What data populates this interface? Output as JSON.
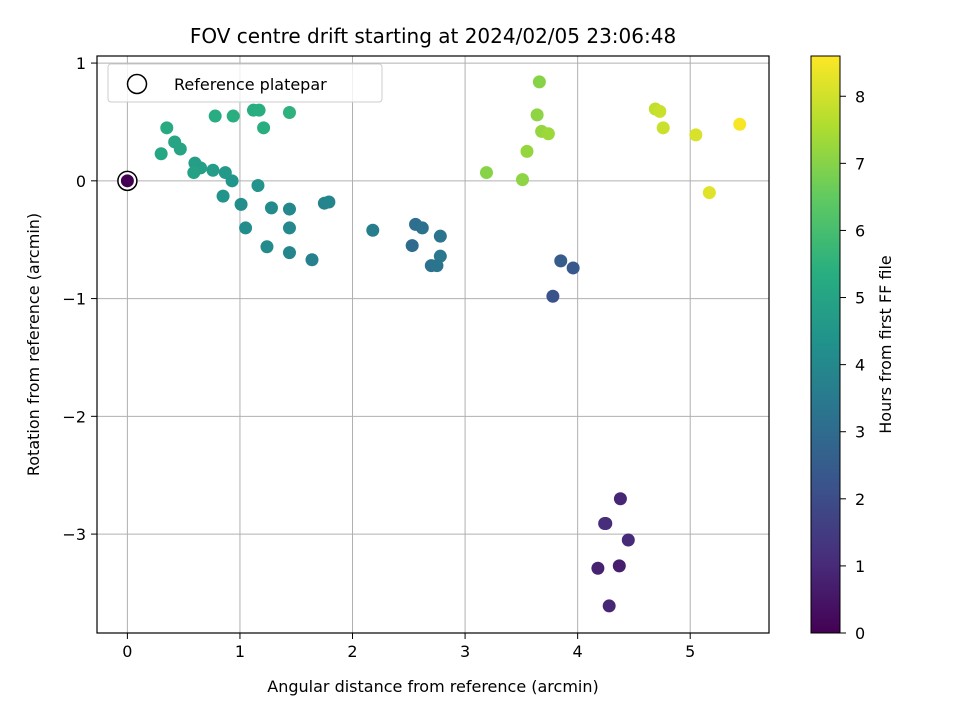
{
  "chart_data": {
    "type": "scatter",
    "title": "FOV centre drift starting at 2024/02/05 23:06:48",
    "xlabel": "Angular distance from reference (arcmin)",
    "ylabel": "Rotation from reference (arcmin)",
    "xlim": [
      -0.27,
      5.7
    ],
    "ylim": [
      -3.84,
      1.06
    ],
    "xticks": [
      0,
      1,
      2,
      3,
      4,
      5
    ],
    "xtick_labels": [
      "0",
      "1",
      "2",
      "3",
      "4",
      "5"
    ],
    "yticks": [
      1,
      0,
      -1,
      -2,
      -3
    ],
    "ytick_labels": [
      "1",
      "0",
      "−1",
      "−2",
      "−3"
    ],
    "grid": true,
    "legend": {
      "position": "top-left",
      "entries": [
        "Reference platepar"
      ]
    },
    "reference_point": {
      "x": 0,
      "y": 0,
      "hours": 0
    },
    "colorbar": {
      "label": "Hours from first FF file",
      "range": [
        0,
        8.6
      ],
      "ticks": [
        0,
        1,
        2,
        3,
        4,
        5,
        6,
        7,
        8
      ],
      "tick_labels": [
        "0",
        "1",
        "2",
        "3",
        "4",
        "5",
        "6",
        "7",
        "8"
      ],
      "colormap": "viridis"
    },
    "points": [
      {
        "x": 4.38,
        "y": -2.7,
        "h": 0.9
      },
      {
        "x": 4.25,
        "y": -2.91,
        "h": 1.0
      },
      {
        "x": 4.24,
        "y": -2.91,
        "h": 1.1
      },
      {
        "x": 4.45,
        "y": -3.05,
        "h": 1.0
      },
      {
        "x": 4.18,
        "y": -3.29,
        "h": 0.8
      },
      {
        "x": 4.37,
        "y": -3.27,
        "h": 0.7
      },
      {
        "x": 4.28,
        "y": -3.61,
        "h": 0.9
      },
      {
        "x": 3.85,
        "y": -0.68,
        "h": 2.5
      },
      {
        "x": 3.96,
        "y": -0.74,
        "h": 2.4
      },
      {
        "x": 3.78,
        "y": -0.98,
        "h": 2.2
      },
      {
        "x": 2.56,
        "y": -0.37,
        "h": 3.1
      },
      {
        "x": 2.62,
        "y": -0.4,
        "h": 3.2
      },
      {
        "x": 2.78,
        "y": -0.47,
        "h": 3.3
      },
      {
        "x": 2.53,
        "y": -0.55,
        "h": 3.0
      },
      {
        "x": 2.78,
        "y": -0.64,
        "h": 3.4
      },
      {
        "x": 2.7,
        "y": -0.72,
        "h": 3.2
      },
      {
        "x": 2.75,
        "y": -0.72,
        "h": 3.3
      },
      {
        "x": 2.18,
        "y": -0.42,
        "h": 3.6
      },
      {
        "x": 1.75,
        "y": -0.19,
        "h": 3.8
      },
      {
        "x": 1.79,
        "y": -0.18,
        "h": 3.9
      },
      {
        "x": 1.64,
        "y": -0.67,
        "h": 3.7
      },
      {
        "x": 1.44,
        "y": -0.24,
        "h": 4.0
      },
      {
        "x": 1.44,
        "y": -0.4,
        "h": 4.0
      },
      {
        "x": 1.44,
        "y": -0.61,
        "h": 3.9
      },
      {
        "x": 1.28,
        "y": -0.23,
        "h": 4.1
      },
      {
        "x": 1.24,
        "y": -0.56,
        "h": 4.1
      },
      {
        "x": 1.05,
        "y": -0.4,
        "h": 4.2
      },
      {
        "x": 1.01,
        "y": -0.2,
        "h": 4.2
      },
      {
        "x": 0.85,
        "y": -0.13,
        "h": 4.4
      },
      {
        "x": 0.93,
        "y": 0.0,
        "h": 4.5
      },
      {
        "x": 1.16,
        "y": -0.04,
        "h": 4.4
      },
      {
        "x": 0.87,
        "y": 0.07,
        "h": 4.6
      },
      {
        "x": 0.76,
        "y": 0.09,
        "h": 4.7
      },
      {
        "x": 0.6,
        "y": 0.15,
        "h": 4.8
      },
      {
        "x": 0.65,
        "y": 0.11,
        "h": 4.8
      },
      {
        "x": 0.59,
        "y": 0.07,
        "h": 4.9
      },
      {
        "x": 0.47,
        "y": 0.27,
        "h": 5.0
      },
      {
        "x": 0.42,
        "y": 0.33,
        "h": 5.0
      },
      {
        "x": 0.3,
        "y": 0.23,
        "h": 5.1
      },
      {
        "x": 0.35,
        "y": 0.45,
        "h": 5.2
      },
      {
        "x": 0.78,
        "y": 0.55,
        "h": 5.3
      },
      {
        "x": 0.94,
        "y": 0.55,
        "h": 5.4
      },
      {
        "x": 1.12,
        "y": 0.6,
        "h": 5.3
      },
      {
        "x": 1.17,
        "y": 0.6,
        "h": 5.4
      },
      {
        "x": 1.21,
        "y": 0.45,
        "h": 5.4
      },
      {
        "x": 1.44,
        "y": 0.58,
        "h": 5.5
      },
      {
        "x": 3.19,
        "y": 0.07,
        "h": 7.0
      },
      {
        "x": 3.51,
        "y": 0.01,
        "h": 7.1
      },
      {
        "x": 3.55,
        "y": 0.25,
        "h": 7.2
      },
      {
        "x": 3.64,
        "y": 0.56,
        "h": 7.1
      },
      {
        "x": 3.66,
        "y": 0.84,
        "h": 7.0
      },
      {
        "x": 3.68,
        "y": 0.42,
        "h": 7.2
      },
      {
        "x": 3.74,
        "y": 0.4,
        "h": 7.3
      },
      {
        "x": 4.69,
        "y": 0.61,
        "h": 7.8
      },
      {
        "x": 4.73,
        "y": 0.59,
        "h": 7.9
      },
      {
        "x": 4.76,
        "y": 0.45,
        "h": 7.9
      },
      {
        "x": 5.05,
        "y": 0.39,
        "h": 8.1
      },
      {
        "x": 5.17,
        "y": -0.1,
        "h": 8.2
      },
      {
        "x": 5.44,
        "y": 0.48,
        "h": 8.5
      }
    ]
  }
}
